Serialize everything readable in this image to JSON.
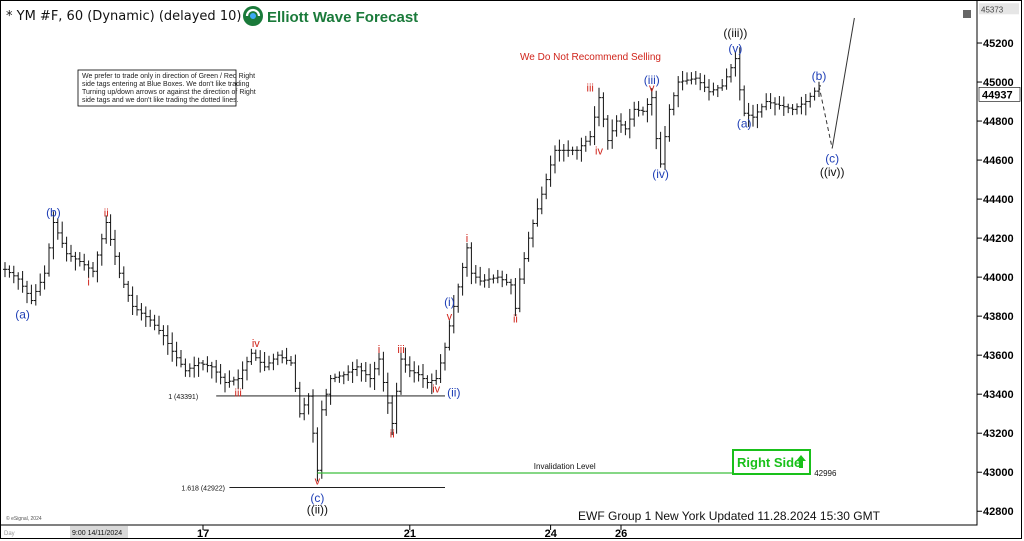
{
  "title": "* YM #F, 60 (Dynamic) (delayed 10)",
  "brand": {
    "name": "Elliott Wave Forecast",
    "color": "#1a7a3a"
  },
  "warning": "We Do Not Recommend Selling",
  "note_lines": [
    "We prefer to trade only in direction of Green / Red Right",
    "side tags entering at Blue Boxes. We don't like trading",
    "Turning up/down arrows or against the direction of Right",
    "side tags and we don't like trading the dotted lines."
  ],
  "footer": "EWF Group 1 New York Updated 11.28.2024 15:30 GMT",
  "copyright": "© eSignal, 2024",
  "date_box": "9:00 14/11/2024",
  "corner_label": "Day",
  "right_side_badge": "Right Side",
  "chart_data": {
    "type": "ohlc",
    "ylim": [
      42750,
      45400
    ],
    "y_ticks": [
      42800,
      43000,
      43200,
      43400,
      43600,
      43800,
      44000,
      44200,
      44400,
      44600,
      44800,
      45000,
      45200
    ],
    "x_ticks": [
      {
        "label": "17",
        "bar": 45
      },
      {
        "label": "21",
        "bar": 92
      },
      {
        "label": "24",
        "bar": 124
      },
      {
        "label": "26",
        "bar": 140
      }
    ],
    "last_price": {
      "value": 44937,
      "label": "44937"
    },
    "top_price": {
      "value": 45373,
      "label": "45373"
    },
    "path": [
      [
        0,
        44040
      ],
      [
        3,
        43990
      ],
      [
        6,
        43880
      ],
      [
        9,
        44020
      ],
      [
        11,
        44280
      ],
      [
        14,
        44120
      ],
      [
        17,
        44080
      ],
      [
        20,
        44030
      ],
      [
        23,
        44280
      ],
      [
        26,
        44020
      ],
      [
        29,
        43850
      ],
      [
        33,
        43780
      ],
      [
        36,
        43700
      ],
      [
        38,
        43620
      ],
      [
        41,
        43520
      ],
      [
        44,
        43560
      ],
      [
        47,
        43540
      ],
      [
        50,
        43460
      ],
      [
        53,
        43480
      ],
      [
        56,
        43610
      ],
      [
        59,
        43540
      ],
      [
        62,
        43600
      ],
      [
        65,
        43560
      ],
      [
        67,
        43300
      ],
      [
        69,
        43390
      ],
      [
        71,
        43010
      ],
      [
        72,
        43320
      ],
      [
        74,
        43480
      ],
      [
        77,
        43500
      ],
      [
        80,
        43540
      ],
      [
        83,
        43480
      ],
      [
        85,
        43580
      ],
      [
        86,
        43460
      ],
      [
        88,
        43250
      ],
      [
        90,
        43580
      ],
      [
        92,
        43520
      ],
      [
        94,
        43500
      ],
      [
        96,
        43460
      ],
      [
        98,
        43480
      ],
      [
        100,
        43640
      ],
      [
        101,
        43750
      ],
      [
        103,
        43950
      ],
      [
        105,
        44150
      ],
      [
        106,
        44020
      ],
      [
        108,
        43980
      ],
      [
        112,
        44000
      ],
      [
        115,
        43960
      ],
      [
        116,
        43840
      ],
      [
        117,
        43990
      ],
      [
        119,
        44200
      ],
      [
        121,
        44350
      ],
      [
        123,
        44500
      ],
      [
        125,
        44650
      ],
      [
        130,
        44650
      ],
      [
        133,
        44720
      ],
      [
        135,
        44920
      ],
      [
        137,
        44700
      ],
      [
        139,
        44800
      ],
      [
        141,
        44760
      ],
      [
        143,
        44860
      ],
      [
        145,
        44850
      ],
      [
        147,
        44920
      ],
      [
        148,
        44710
      ],
      [
        149,
        44580
      ],
      [
        151,
        44860
      ],
      [
        153,
        45000
      ],
      [
        157,
        45020
      ],
      [
        160,
        44950
      ],
      [
        163,
        44980
      ],
      [
        166,
        45120
      ],
      [
        167,
        44960
      ],
      [
        168,
        44840
      ],
      [
        170,
        44820
      ],
      [
        173,
        44900
      ],
      [
        176,
        44880
      ],
      [
        179,
        44860
      ],
      [
        182,
        44900
      ],
      [
        185,
        44980
      ]
    ],
    "projection": [
      [
        185,
        44980
      ],
      [
        188,
        44660
      ],
      [
        196,
        45720
      ]
    ],
    "levels": [
      {
        "name": "1 (43391)",
        "value": 43391,
        "from": 48,
        "to": 100
      },
      {
        "name": "1.618 (42922)",
        "value": 42922,
        "from": 51,
        "to": 100
      },
      {
        "name": "Invalidation Level",
        "value": 42996,
        "from": 71,
        "to": 183,
        "color": "#3fbf3f",
        "right_label": "42996"
      }
    ],
    "labels": [
      {
        "text": "(a)",
        "bar": 4,
        "value": 43860,
        "color": "blue",
        "pos": "below"
      },
      {
        "text": "(b)",
        "bar": 11,
        "value": 44280,
        "color": "blue",
        "pos": "above"
      },
      {
        "text": "i",
        "bar": 19,
        "value": 44030,
        "color": "red",
        "pos": "below"
      },
      {
        "text": "ii",
        "bar": 23,
        "value": 44280,
        "color": "red",
        "pos": "above"
      },
      {
        "text": "iii",
        "bar": 53,
        "value": 43460,
        "color": "red",
        "pos": "below"
      },
      {
        "text": "iv",
        "bar": 57,
        "value": 43610,
        "color": "red",
        "pos": "above"
      },
      {
        "text": "v",
        "bar": 71,
        "value": 43010,
        "color": "red",
        "pos": "below"
      },
      {
        "text": "(c)",
        "bar": 71,
        "value": 42920,
        "color": "blue",
        "pos": "below"
      },
      {
        "text": "((ii))",
        "bar": 71,
        "value": 42860,
        "color": "black",
        "pos": "below"
      },
      {
        "text": "i",
        "bar": 85,
        "value": 43580,
        "color": "red",
        "pos": "above"
      },
      {
        "text": "ii",
        "bar": 88,
        "value": 43250,
        "color": "red",
        "pos": "below"
      },
      {
        "text": "iii",
        "bar": 90,
        "value": 43580,
        "color": "red",
        "pos": "above"
      },
      {
        "text": "iv",
        "bar": 98,
        "value": 43480,
        "color": "red",
        "pos": "below"
      },
      {
        "text": "v",
        "bar": 101,
        "value": 43750,
        "color": "red",
        "pos": "above"
      },
      {
        "text": "(i)",
        "bar": 101,
        "value": 43820,
        "color": "blue",
        "pos": "above"
      },
      {
        "text": "(ii)",
        "bar": 102,
        "value": 43460,
        "color": "blue",
        "pos": "below"
      },
      {
        "text": "i",
        "bar": 105,
        "value": 44150,
        "color": "red",
        "pos": "above"
      },
      {
        "text": "ii",
        "bar": 116,
        "value": 43840,
        "color": "red",
        "pos": "below"
      },
      {
        "text": "iii",
        "bar": 133,
        "value": 44920,
        "color": "red",
        "pos": "above"
      },
      {
        "text": "iv",
        "bar": 135,
        "value": 44700,
        "color": "red",
        "pos": "below"
      },
      {
        "text": "v",
        "bar": 147,
        "value": 44920,
        "color": "red",
        "pos": "above"
      },
      {
        "text": "(iii)",
        "bar": 147,
        "value": 44960,
        "color": "blue",
        "pos": "above"
      },
      {
        "text": "(iv)",
        "bar": 149,
        "value": 44580,
        "color": "blue",
        "pos": "below"
      },
      {
        "text": "(v)",
        "bar": 166,
        "value": 45120,
        "color": "blue",
        "pos": "above"
      },
      {
        "text": "((iii))",
        "bar": 166,
        "value": 45200,
        "color": "black",
        "pos": "above"
      },
      {
        "text": "(a)",
        "bar": 168,
        "value": 44840,
        "color": "blue",
        "pos": "below"
      },
      {
        "text": "(b)",
        "bar": 185,
        "value": 44980,
        "color": "blue",
        "pos": "above"
      },
      {
        "text": "(c)",
        "bar": 188,
        "value": 44660,
        "color": "blue",
        "pos": "below"
      },
      {
        "text": "((iv))",
        "bar": 188,
        "value": 44590,
        "color": "black",
        "pos": "below"
      }
    ]
  }
}
